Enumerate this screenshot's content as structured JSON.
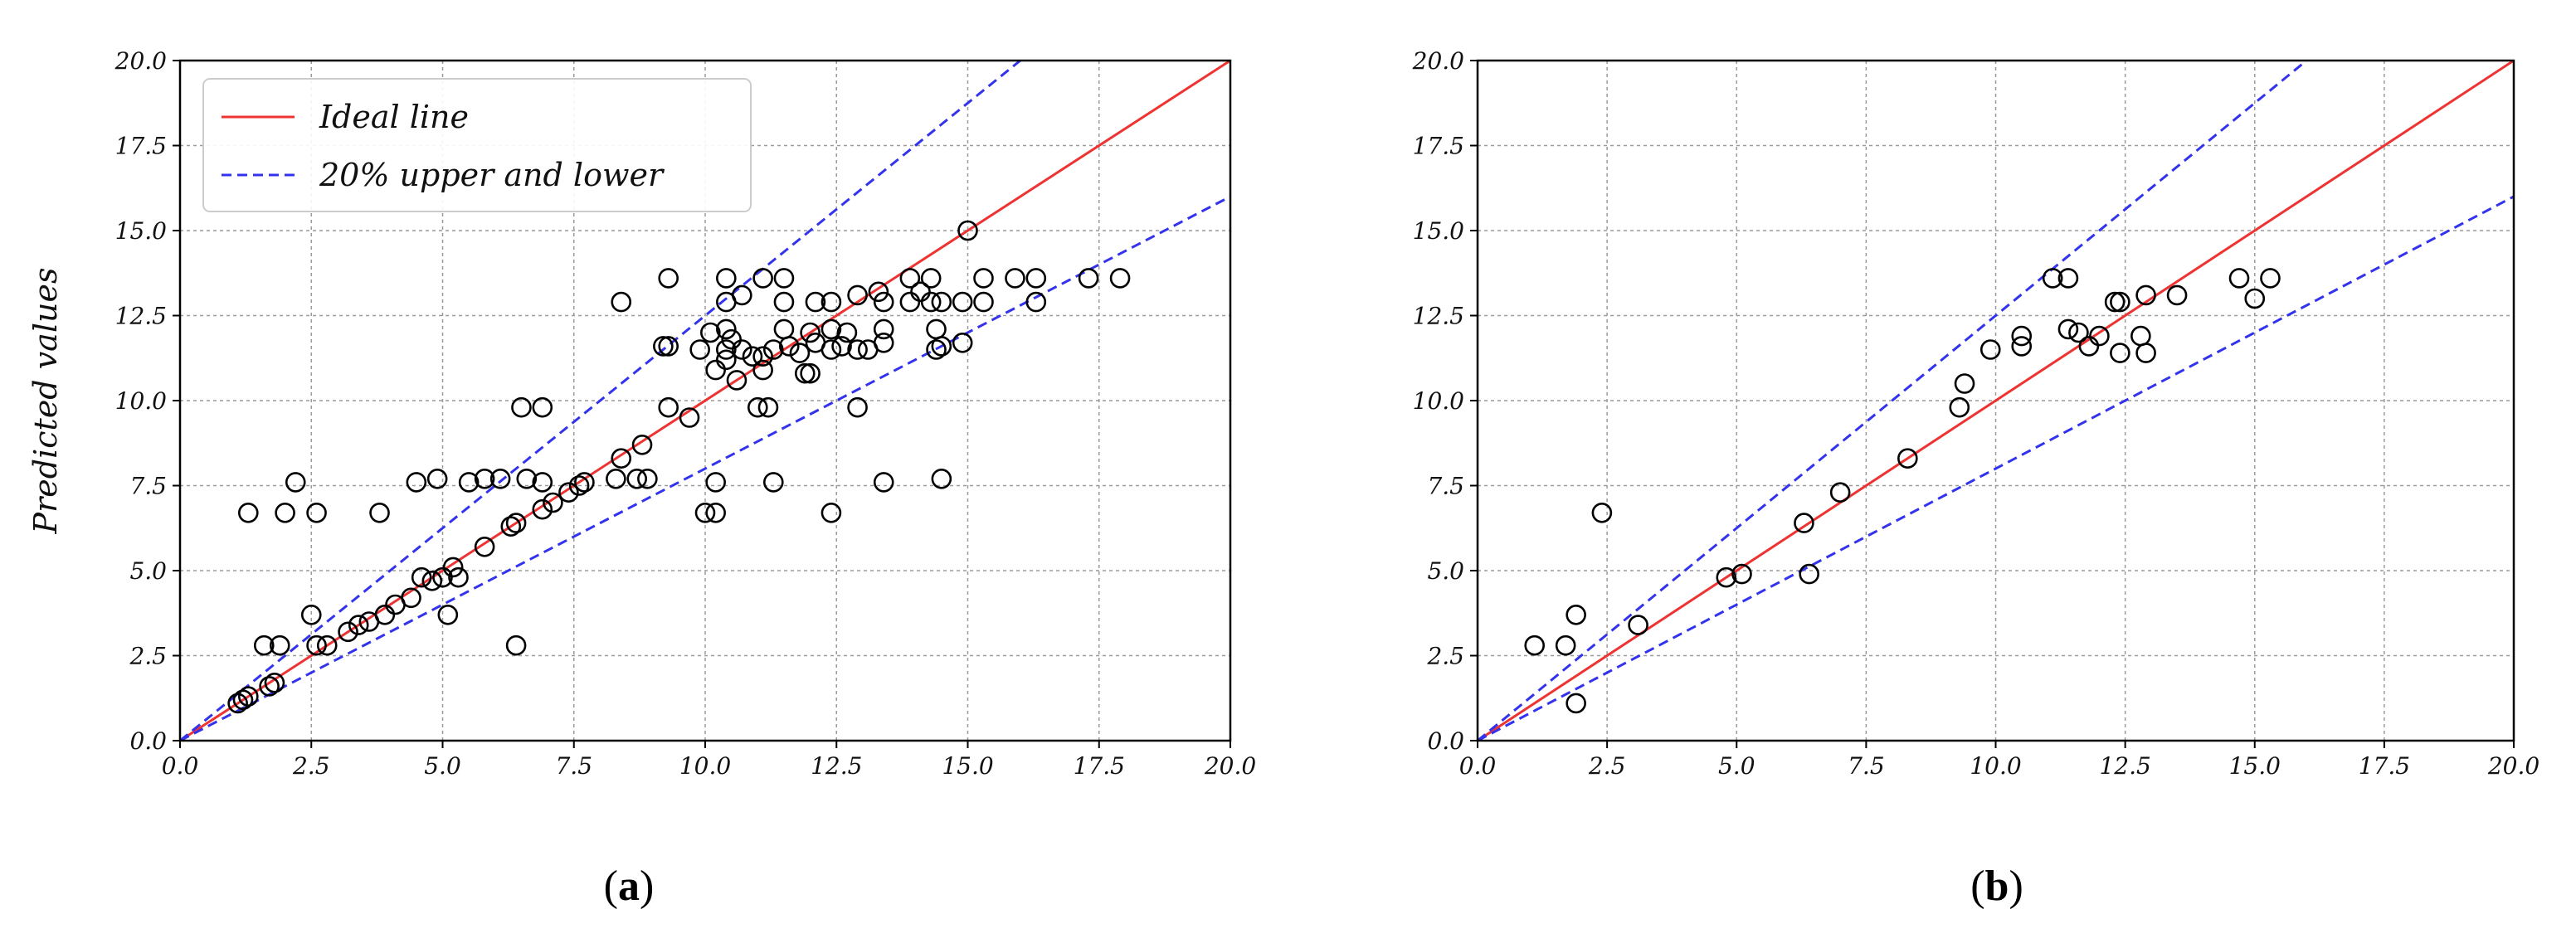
{
  "chart_data": [
    {
      "type": "scatter",
      "panel_label": "a",
      "xlabel": "",
      "ylabel": "Predicted values",
      "xlim": [
        0,
        20
      ],
      "ylim": [
        0,
        20
      ],
      "xticks": [
        "0.0",
        "2.5",
        "5.0",
        "7.5",
        "10.0",
        "12.5",
        "15.0",
        "17.5",
        "20.0"
      ],
      "yticks": [
        "0.0",
        "2.5",
        "5.0",
        "7.5",
        "10.0",
        "12.5",
        "15.0",
        "17.5",
        "20.0"
      ],
      "grid": true,
      "legend": {
        "placement": "top-left",
        "entries": [
          {
            "label": "Ideal line",
            "color": "#ee3333",
            "style": "solid"
          },
          {
            "label": "20% upper and lower",
            "color": "#3333ee",
            "style": "dashed"
          }
        ]
      },
      "lines": [
        {
          "name": "Ideal line",
          "slope": 1.0,
          "color": "#ee3333",
          "style": "solid"
        },
        {
          "name": "20% upper",
          "slope": 1.25,
          "color": "#3333ee",
          "style": "dashed"
        },
        {
          "name": "20% lower",
          "slope": 0.8,
          "color": "#3333ee",
          "style": "dashed"
        }
      ],
      "points": [
        [
          1.1,
          1.1
        ],
        [
          1.2,
          1.2
        ],
        [
          1.3,
          1.3
        ],
        [
          1.7,
          1.6
        ],
        [
          1.8,
          1.7
        ],
        [
          1.3,
          6.7
        ],
        [
          2.0,
          6.7
        ],
        [
          2.2,
          7.6
        ],
        [
          2.6,
          6.7
        ],
        [
          1.6,
          2.8
        ],
        [
          1.9,
          2.8
        ],
        [
          2.5,
          3.7
        ],
        [
          2.6,
          2.8
        ],
        [
          2.8,
          2.8
        ],
        [
          3.2,
          3.2
        ],
        [
          3.4,
          3.4
        ],
        [
          3.6,
          3.5
        ],
        [
          3.9,
          3.7
        ],
        [
          4.1,
          4.0
        ],
        [
          4.4,
          4.2
        ],
        [
          4.6,
          4.8
        ],
        [
          4.8,
          4.7
        ],
        [
          5.0,
          4.8
        ],
        [
          5.1,
          3.7
        ],
        [
          5.2,
          5.1
        ],
        [
          5.3,
          4.8
        ],
        [
          3.8,
          6.7
        ],
        [
          4.5,
          7.6
        ],
        [
          4.9,
          7.7
        ],
        [
          5.5,
          7.6
        ],
        [
          5.8,
          7.7
        ],
        [
          6.1,
          7.7
        ],
        [
          5.8,
          5.7
        ],
        [
          6.3,
          6.3
        ],
        [
          6.4,
          6.4
        ],
        [
          6.5,
          9.8
        ],
        [
          6.6,
          7.7
        ],
        [
          6.9,
          7.6
        ],
        [
          6.9,
          9.8
        ],
        [
          6.9,
          6.8
        ],
        [
          7.1,
          7.0
        ],
        [
          7.4,
          7.3
        ],
        [
          7.6,
          7.5
        ],
        [
          7.7,
          7.6
        ],
        [
          6.4,
          2.8
        ],
        [
          8.3,
          7.7
        ],
        [
          8.4,
          8.3
        ],
        [
          8.7,
          7.7
        ],
        [
          8.8,
          8.7
        ],
        [
          8.9,
          7.7
        ],
        [
          8.4,
          12.9
        ],
        [
          9.2,
          11.6
        ],
        [
          9.3,
          13.6
        ],
        [
          9.3,
          11.6
        ],
        [
          9.3,
          9.8
        ],
        [
          9.7,
          9.5
        ],
        [
          9.9,
          11.5
        ],
        [
          10.0,
          6.7
        ],
        [
          10.1,
          12.0
        ],
        [
          10.2,
          6.7
        ],
        [
          10.2,
          10.9
        ],
        [
          10.2,
          7.6
        ],
        [
          10.4,
          13.6
        ],
        [
          10.4,
          12.9
        ],
        [
          10.4,
          12.1
        ],
        [
          10.4,
          11.5
        ],
        [
          10.4,
          11.2
        ],
        [
          10.5,
          11.8
        ],
        [
          10.6,
          10.6
        ],
        [
          10.7,
          13.1
        ],
        [
          10.7,
          11.5
        ],
        [
          10.9,
          11.3
        ],
        [
          11.0,
          9.8
        ],
        [
          11.1,
          13.6
        ],
        [
          11.1,
          11.3
        ],
        [
          11.1,
          10.9
        ],
        [
          11.2,
          9.8
        ],
        [
          11.3,
          11.5
        ],
        [
          11.3,
          7.6
        ],
        [
          11.5,
          13.6
        ],
        [
          11.5,
          12.9
        ],
        [
          11.5,
          12.1
        ],
        [
          11.6,
          11.6
        ],
        [
          11.8,
          11.4
        ],
        [
          11.9,
          10.8
        ],
        [
          12.0,
          12.0
        ],
        [
          12.0,
          10.8
        ],
        [
          12.1,
          12.9
        ],
        [
          12.1,
          11.7
        ],
        [
          12.4,
          12.9
        ],
        [
          12.4,
          12.1
        ],
        [
          12.4,
          11.5
        ],
        [
          12.4,
          6.7
        ],
        [
          12.6,
          11.6
        ],
        [
          12.7,
          12.0
        ],
        [
          12.9,
          13.1
        ],
        [
          12.9,
          11.5
        ],
        [
          12.9,
          9.8
        ],
        [
          13.1,
          11.5
        ],
        [
          13.3,
          13.2
        ],
        [
          13.4,
          12.9
        ],
        [
          13.4,
          12.1
        ],
        [
          13.4,
          11.7
        ],
        [
          13.4,
          7.6
        ],
        [
          13.9,
          13.6
        ],
        [
          13.9,
          12.9
        ],
        [
          14.1,
          13.2
        ],
        [
          14.3,
          13.6
        ],
        [
          14.3,
          12.9
        ],
        [
          14.4,
          12.1
        ],
        [
          14.4,
          11.5
        ],
        [
          14.5,
          12.9
        ],
        [
          14.5,
          11.6
        ],
        [
          14.5,
          7.7
        ],
        [
          14.9,
          12.9
        ],
        [
          14.9,
          11.7
        ],
        [
          15.0,
          15.0
        ],
        [
          15.3,
          13.6
        ],
        [
          15.3,
          12.9
        ],
        [
          15.9,
          13.6
        ],
        [
          16.3,
          13.6
        ],
        [
          16.3,
          12.9
        ],
        [
          17.3,
          13.6
        ],
        [
          17.9,
          13.6
        ]
      ]
    },
    {
      "type": "scatter",
      "panel_label": "b",
      "xlabel": "",
      "ylabel": "",
      "xlim": [
        0,
        20
      ],
      "ylim": [
        0,
        20
      ],
      "xticks": [
        "0.0",
        "2.5",
        "5.0",
        "7.5",
        "10.0",
        "12.5",
        "15.0",
        "17.5",
        "20.0"
      ],
      "yticks": [
        "0.0",
        "2.5",
        "5.0",
        "7.5",
        "10.0",
        "12.5",
        "15.0",
        "17.5",
        "20.0"
      ],
      "grid": true,
      "lines": [
        {
          "name": "Ideal line",
          "slope": 1.0,
          "color": "#ee3333",
          "style": "solid"
        },
        {
          "name": "20% upper",
          "slope": 1.25,
          "color": "#3333ee",
          "style": "dashed"
        },
        {
          "name": "20% lower",
          "slope": 0.8,
          "color": "#3333ee",
          "style": "dashed"
        }
      ],
      "points": [
        [
          1.1,
          2.8
        ],
        [
          1.7,
          2.8
        ],
        [
          1.9,
          3.7
        ],
        [
          1.9,
          1.1
        ],
        [
          2.4,
          6.7
        ],
        [
          3.1,
          3.4
        ],
        [
          4.8,
          4.8
        ],
        [
          5.1,
          4.9
        ],
        [
          6.3,
          6.4
        ],
        [
          6.4,
          4.9
        ],
        [
          7.0,
          7.3
        ],
        [
          8.3,
          8.3
        ],
        [
          9.3,
          9.8
        ],
        [
          9.4,
          10.5
        ],
        [
          9.9,
          11.5
        ],
        [
          10.5,
          11.9
        ],
        [
          10.5,
          11.6
        ],
        [
          11.1,
          13.6
        ],
        [
          11.4,
          13.6
        ],
        [
          11.4,
          12.1
        ],
        [
          11.6,
          12.0
        ],
        [
          11.8,
          11.6
        ],
        [
          12.0,
          11.9
        ],
        [
          12.3,
          12.9
        ],
        [
          12.4,
          12.9
        ],
        [
          12.4,
          11.4
        ],
        [
          12.8,
          11.9
        ],
        [
          12.9,
          13.1
        ],
        [
          12.9,
          11.4
        ],
        [
          13.5,
          13.1
        ],
        [
          14.7,
          13.6
        ],
        [
          15.0,
          13.0
        ],
        [
          15.3,
          13.6
        ]
      ]
    }
  ]
}
